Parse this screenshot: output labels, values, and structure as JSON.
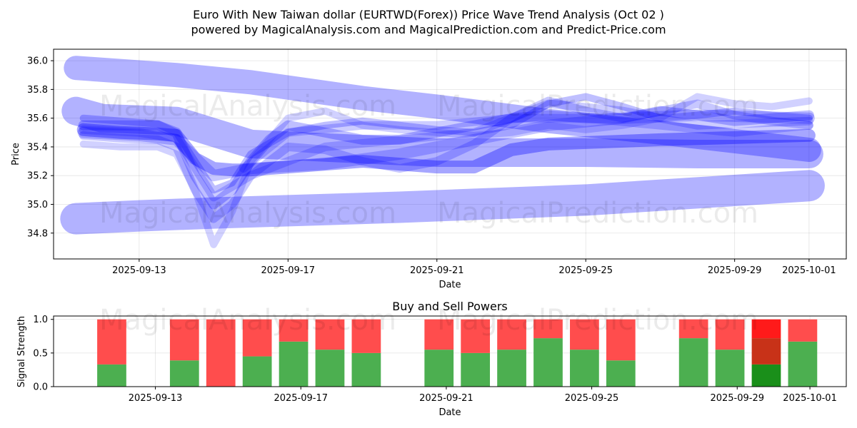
{
  "chart_data": [
    {
      "type": "line",
      "title": "Euro With New Taiwan dollar (EURTWD(Forex)) Price Wave Trend Analysis (Oct 02 )",
      "subtitle": "powered by MagicalAnalysis.com and MagicalPrediction.com and Predict-Price.com",
      "xlabel": "Date",
      "ylabel": "Price",
      "x_tick_labels": [
        "2025-09-13",
        "2025-09-17",
        "2025-09-21",
        "2025-09-25",
        "2025-09-29",
        "2025-10-01"
      ],
      "x_tick_days": [
        13,
        17,
        21,
        25,
        29,
        31
      ],
      "y_ticks": [
        34.8,
        35.0,
        35.2,
        35.4,
        35.6,
        35.8,
        36.0
      ],
      "y_tick_labels": [
        "34.8",
        "35.0",
        "35.2",
        "35.4",
        "35.6",
        "35.8",
        "36.0"
      ],
      "xlim": [
        10.7,
        32.0
      ],
      "ylim": [
        34.62,
        36.08
      ],
      "series_color": "#0000ff",
      "series": [
        {
          "name": "wave-1",
          "x": [
            11.3,
            14.0,
            16.0,
            19.0,
            21.0,
            24.0,
            27.0,
            31.0
          ],
          "values": [
            35.95,
            35.9,
            35.85,
            35.74,
            35.68,
            35.58,
            35.5,
            35.38
          ],
          "width": 34,
          "opacity": 0.3
        },
        {
          "name": "wave-2",
          "x": [
            11.3,
            12.0,
            14.0,
            16.0,
            21.0,
            25.0,
            28.0,
            31.0
          ],
          "values": [
            35.65,
            35.6,
            35.58,
            35.42,
            35.36,
            35.36,
            35.35,
            35.35
          ],
          "width": 40,
          "opacity": 0.3
        },
        {
          "name": "wave-3",
          "x": [
            11.3,
            13.0,
            15.0,
            20.0,
            25.0,
            31.0
          ],
          "values": [
            34.9,
            34.92,
            34.94,
            34.98,
            35.03,
            35.13
          ],
          "width": 44,
          "opacity": 0.3
        },
        {
          "name": "wave-4",
          "x": [
            11.5,
            12.5,
            13.5,
            14.0,
            14.5,
            15.0,
            15.5,
            16.0,
            17.0,
            18.0,
            19.0,
            21.0,
            22.0,
            23.0,
            24.0,
            25.0,
            27.0,
            31.0
          ],
          "values": [
            35.52,
            35.5,
            35.49,
            35.48,
            35.32,
            35.25,
            35.24,
            35.24,
            35.26,
            35.28,
            35.3,
            35.26,
            35.26,
            35.38,
            35.42,
            35.43,
            35.45,
            35.48
          ],
          "width": 18,
          "opacity": 0.35
        },
        {
          "name": "wave-5",
          "x": [
            11.5,
            12.5,
            13.5,
            14.0,
            14.5,
            15.0,
            15.5,
            16.0,
            16.5,
            17.0,
            18.0,
            19.0,
            20.0,
            21.0,
            22.0,
            23.0,
            24.0,
            25.0,
            26.0,
            27.0,
            28.0,
            29.0,
            30.0,
            31.0
          ],
          "values": [
            35.55,
            35.55,
            35.55,
            35.5,
            35.2,
            35.0,
            35.1,
            35.3,
            35.45,
            35.55,
            35.5,
            35.45,
            35.45,
            35.5,
            35.55,
            35.6,
            35.62,
            35.6,
            35.6,
            35.65,
            35.62,
            35.58,
            35.6,
            35.62
          ],
          "width": 14,
          "opacity": 0.25
        },
        {
          "name": "wave-6",
          "x": [
            11.5,
            12.5,
            13.5,
            14.0,
            14.5,
            15.0,
            15.5,
            16.0,
            17.0,
            18.0,
            19.0,
            20.0,
            21.0,
            22.0,
            23.0,
            24.0,
            25.0,
            26.0,
            27.0,
            28.0,
            29.0,
            30.0,
            31.0
          ],
          "values": [
            35.48,
            35.46,
            35.45,
            35.4,
            35.1,
            34.9,
            35.0,
            35.2,
            35.4,
            35.38,
            35.3,
            35.25,
            35.3,
            35.42,
            35.6,
            35.72,
            35.65,
            35.6,
            35.65,
            35.7,
            35.62,
            35.58,
            35.55
          ],
          "width": 12,
          "opacity": 0.22
        },
        {
          "name": "wave-7",
          "x": [
            11.5,
            12.5,
            13.5,
            14.0,
            14.5,
            15.0,
            15.5,
            16.0,
            17.0,
            18.0,
            19.0,
            20.0,
            21.0,
            22.0,
            23.0,
            24.0,
            25.0,
            26.0,
            27.0,
            28.0,
            29.0,
            30.0,
            31.0
          ],
          "values": [
            35.6,
            35.58,
            35.56,
            35.5,
            35.3,
            35.1,
            35.15,
            35.35,
            35.5,
            35.55,
            35.58,
            35.55,
            35.52,
            35.5,
            35.55,
            35.7,
            35.75,
            35.68,
            35.6,
            35.62,
            35.65,
            35.62,
            35.6
          ],
          "width": 10,
          "opacity": 0.25
        },
        {
          "name": "wave-8",
          "x": [
            11.5,
            12.5,
            13.5,
            14.0,
            14.5,
            15.0,
            15.5,
            16.0,
            17.0,
            18.0,
            19.0,
            20.0,
            21.0,
            22.0,
            23.0,
            24.0,
            25.0,
            26.0,
            27.0,
            28.0,
            29.0,
            30.0,
            31.0
          ],
          "values": [
            35.42,
            35.4,
            35.4,
            35.35,
            35.1,
            34.72,
            34.95,
            35.3,
            35.6,
            35.65,
            35.55,
            35.52,
            35.5,
            35.48,
            35.5,
            35.55,
            35.52,
            35.55,
            35.6,
            35.75,
            35.7,
            35.68,
            35.72
          ],
          "width": 10,
          "opacity": 0.18
        },
        {
          "name": "wave-9",
          "x": [
            11.5,
            13.0,
            14.0,
            15.0,
            16.0,
            18.0,
            20.0,
            22.0,
            24.0,
            26.0,
            28.0,
            31.0
          ],
          "values": [
            35.5,
            35.48,
            35.45,
            35.2,
            35.25,
            35.28,
            35.35,
            35.45,
            35.55,
            35.6,
            35.62,
            35.6
          ],
          "width": 16,
          "opacity": 0.22
        },
        {
          "name": "wave-10",
          "x": [
            11.5,
            13.0,
            14.0,
            15.0,
            16.0,
            18.0,
            20.0,
            22.0,
            24.0,
            26.0,
            28.0,
            31.0
          ],
          "values": [
            35.52,
            35.5,
            35.46,
            35.05,
            35.2,
            35.4,
            35.45,
            35.5,
            35.7,
            35.65,
            35.55,
            35.58
          ],
          "width": 12,
          "opacity": 0.2
        },
        {
          "name": "wave-11",
          "x": [
            15.8,
            17.0,
            19.0,
            21.0,
            23.0,
            25.0,
            27.0,
            29.0,
            31.0
          ],
          "values": [
            35.25,
            35.5,
            35.55,
            35.55,
            35.6,
            35.6,
            35.55,
            35.5,
            35.55
          ],
          "width": 12,
          "opacity": 0.2
        }
      ]
    },
    {
      "type": "bar",
      "title": "Buy and Sell Powers",
      "xlabel": "Date",
      "ylabel": "Signal Strength",
      "x_tick_labels": [
        "2025-09-13",
        "2025-09-17",
        "2025-09-21",
        "2025-09-25",
        "2025-09-29",
        "2025-10-01"
      ],
      "x_tick_days": [
        13,
        17,
        21,
        25,
        29,
        31
      ],
      "y_ticks": [
        0.0,
        0.5,
        1.0
      ],
      "y_tick_labels": [
        "0.0",
        "0.5",
        "1.0"
      ],
      "xlim": [
        10.2,
        32.0
      ],
      "ylim": [
        0,
        1.05
      ],
      "colors": {
        "buy": "#4caf50",
        "sell": "#ff4d4d",
        "buy_strong": "#1a8f1a",
        "sell_strong": "#ff1a1a",
        "mixed": "#c83218"
      },
      "bars": [
        {
          "day": 11.8,
          "buy": 0.33,
          "sell": 0.67
        },
        {
          "day": 13.8,
          "buy": 0.39,
          "sell": 0.61
        },
        {
          "day": 14.8,
          "buy": 0.0,
          "sell": 1.0
        },
        {
          "day": 15.8,
          "buy": 0.45,
          "sell": 0.55
        },
        {
          "day": 16.8,
          "buy": 0.67,
          "sell": 0.33
        },
        {
          "day": 17.8,
          "buy": 0.55,
          "sell": 0.45
        },
        {
          "day": 18.8,
          "buy": 0.5,
          "sell": 0.5
        },
        {
          "day": 20.8,
          "buy": 0.55,
          "sell": 0.45
        },
        {
          "day": 21.8,
          "buy": 0.5,
          "sell": 0.5
        },
        {
          "day": 22.8,
          "buy": 0.55,
          "sell": 0.45
        },
        {
          "day": 23.8,
          "buy": 0.72,
          "sell": 0.28
        },
        {
          "day": 24.8,
          "buy": 0.55,
          "sell": 0.45
        },
        {
          "day": 25.8,
          "buy": 0.39,
          "sell": 0.61
        },
        {
          "day": 27.8,
          "buy": 0.72,
          "sell": 0.28
        },
        {
          "day": 28.8,
          "buy": 0.55,
          "sell": 0.45
        },
        {
          "day": 29.8,
          "buy": 0.33,
          "sell": 0.67,
          "strong": true
        },
        {
          "day": 30.8,
          "buy": 0.67,
          "sell": 0.33
        }
      ]
    }
  ],
  "watermarks": {
    "analysis": "MagicalAnalysis.com",
    "prediction": "MagicalPrediction.com"
  }
}
